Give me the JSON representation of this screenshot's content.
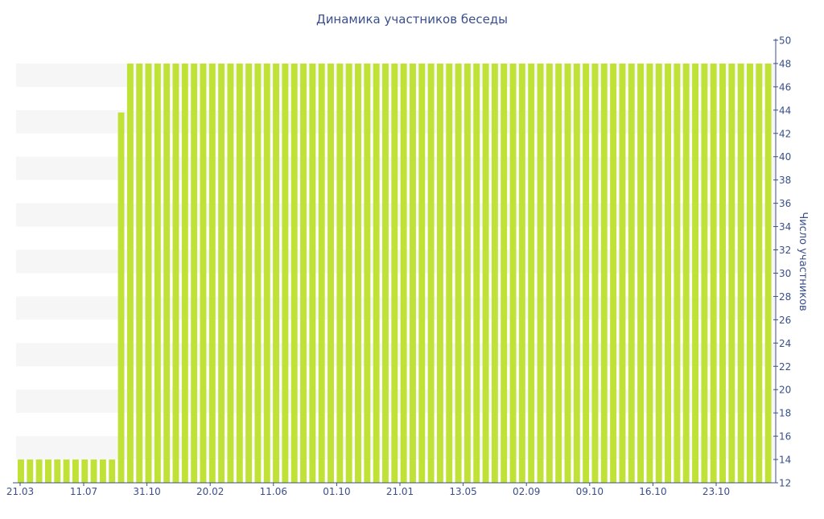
{
  "chart_data": {
    "type": "bar",
    "title": "Динамика участников беседы",
    "xlabel": "",
    "ylabel": "Число участников",
    "ylim": [
      12,
      50
    ],
    "yticks": [
      12,
      14,
      16,
      18,
      20,
      22,
      24,
      26,
      28,
      30,
      32,
      34,
      36,
      38,
      40,
      42,
      44,
      46,
      48,
      50
    ],
    "y_axis_position": "right",
    "xtick_labels": [
      "21.03",
      "11.07",
      "31.10",
      "20.02",
      "11.06",
      "01.10",
      "21.01",
      "13.05",
      "02.09",
      "09.10",
      "16.10",
      "23.10"
    ],
    "values": [
      14,
      14,
      14,
      14,
      14,
      14,
      14,
      14,
      14,
      14,
      14,
      43.8,
      48,
      48,
      48,
      48,
      48,
      48,
      48,
      48,
      48,
      48,
      48,
      48,
      48,
      48,
      48,
      48,
      48,
      48,
      48,
      48,
      48,
      48,
      48,
      48,
      48,
      48,
      48,
      48,
      48,
      48,
      48,
      48,
      48,
      48,
      48,
      48,
      48,
      48,
      48,
      48,
      48,
      48,
      48,
      48,
      48,
      48,
      48,
      48,
      48,
      48,
      48,
      48,
      48,
      48,
      48,
      48,
      48,
      48,
      48,
      48,
      48,
      48,
      48,
      48,
      48,
      48,
      48,
      48,
      48,
      48,
      48
    ],
    "bar_color": "#c0e236",
    "band_color": "#f6f6f6",
    "text_color": "#3a4f8c",
    "grid": "horizontal-bands",
    "legend": "none"
  }
}
